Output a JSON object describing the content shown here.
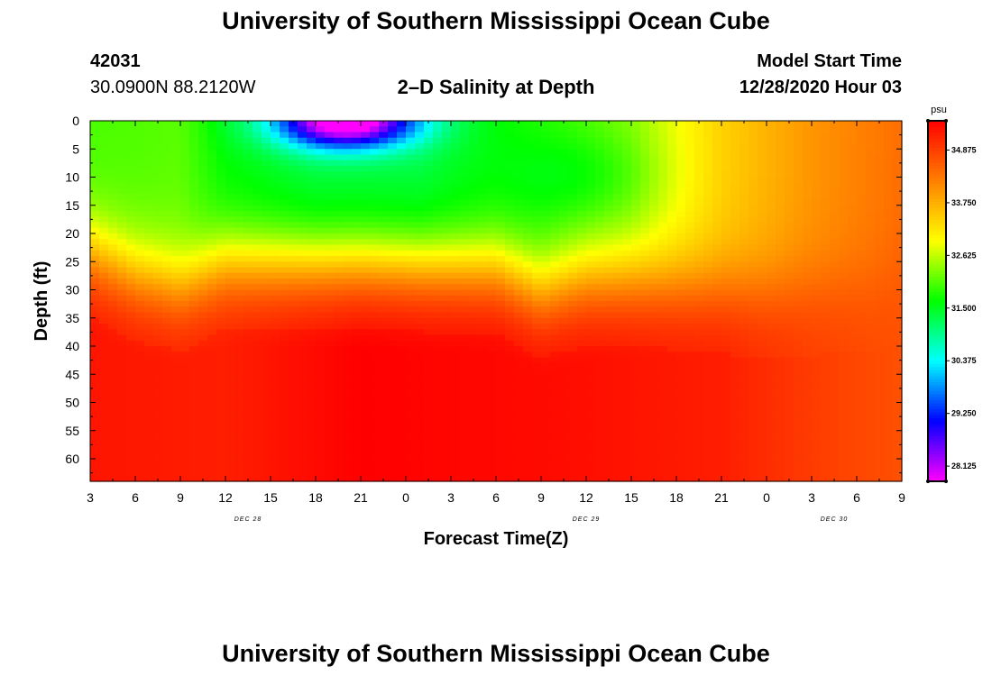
{
  "header": {
    "title_top": "University of Southern Mississippi Ocean Cube",
    "title_bottom": "University of Southern Mississippi Ocean Cube",
    "station_id": "42031",
    "station_coords": "30.0900N 88.2120W",
    "plot_title": "2–D Salinity at Depth",
    "model_start_label": "Model Start Time",
    "model_start_value": "12/28/2020 Hour 03"
  },
  "chart_data": {
    "type": "heatmap",
    "title": "2–D Salinity at Depth",
    "xlabel": "Forecast Time(Z)",
    "ylabel": "Depth (ft)",
    "x_tick_labels": [
      "3",
      "6",
      "9",
      "12",
      "15",
      "18",
      "21",
      "0",
      "3",
      "6",
      "9",
      "12",
      "15",
      "18",
      "21",
      "0",
      "3",
      "6",
      "9"
    ],
    "date_labels": [
      {
        "text": "DEC 28",
        "tick_index": 3.5
      },
      {
        "text": "DEC 29",
        "tick_index": 11
      },
      {
        "text": "DEC 30",
        "tick_index": 16.5
      }
    ],
    "y_tick_labels": [
      "0",
      "5",
      "10",
      "15",
      "20",
      "25",
      "30",
      "35",
      "40",
      "45",
      "50",
      "55",
      "60"
    ],
    "ylim": [
      0,
      64
    ],
    "forecast_hours": [
      0,
      6,
      12,
      18,
      24,
      30,
      36,
      42,
      48,
      54
    ],
    "colorbar": {
      "unit": "psu",
      "min": 27.8,
      "max": 35.5,
      "tick_labels": [
        "28.125",
        "29.250",
        "30.375",
        "31.500",
        "32.625",
        "33.750",
        "34.875"
      ],
      "tick_values": [
        28.125,
        29.25,
        30.375,
        31.5,
        32.625,
        33.75,
        34.875
      ],
      "palette": [
        "#ff00ff",
        "#8000ff",
        "#0000ff",
        "#0080ff",
        "#00ffff",
        "#00ff80",
        "#00ff00",
        "#80ff00",
        "#ffff00",
        "#ffc000",
        "#ff8000",
        "#ff4000",
        "#ff0000"
      ]
    },
    "features": {
      "fresh_core_min_psu": 28.0,
      "fresh_core_hour": 17,
      "fresh_core_depth_ft": 0,
      "halocline_depth_ft": [
        23,
        27,
        29,
        25,
        25,
        26,
        30,
        28,
        28,
        30,
        29,
        27
      ],
      "halocline_hours": [
        0,
        3,
        6,
        9,
        18,
        27,
        30,
        33,
        36,
        45,
        52,
        54
      ]
    }
  }
}
